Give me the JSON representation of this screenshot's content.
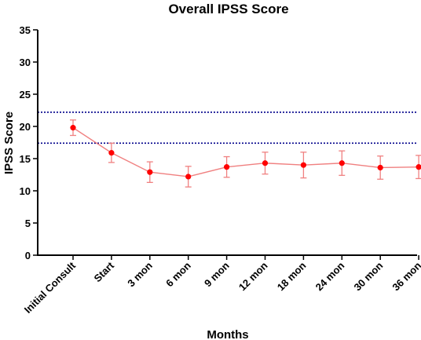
{
  "chart_data": {
    "type": "line",
    "title": "Overall IPSS Score",
    "xlabel": "Months",
    "ylabel": "IPSS Score",
    "ylim": [
      0,
      35
    ],
    "yticks": [
      0,
      5,
      10,
      15,
      20,
      25,
      30,
      35
    ],
    "grid": false,
    "legend": "none",
    "categories": [
      "Initial Consult",
      "Start",
      "3 mon",
      "6 mon",
      "9 mon",
      "12 mon",
      "18 mon",
      "24 mon",
      "30 mon",
      "36 mon"
    ],
    "series": [
      {
        "values": [
          19.8,
          15.9,
          12.9,
          12.2,
          13.7,
          14.3,
          14.0,
          14.3,
          13.6,
          13.7
        ],
        "error": [
          1.2,
          1.5,
          1.6,
          1.6,
          1.6,
          1.7,
          2.0,
          1.9,
          1.8,
          1.8
        ],
        "color": "#ff0000",
        "line_color": "#f08080"
      }
    ],
    "reference_lines": [
      {
        "y": 22.2,
        "style": "dotted",
        "color": "#00008b"
      },
      {
        "y": 17.4,
        "style": "dotted",
        "color": "#00008b"
      }
    ]
  }
}
